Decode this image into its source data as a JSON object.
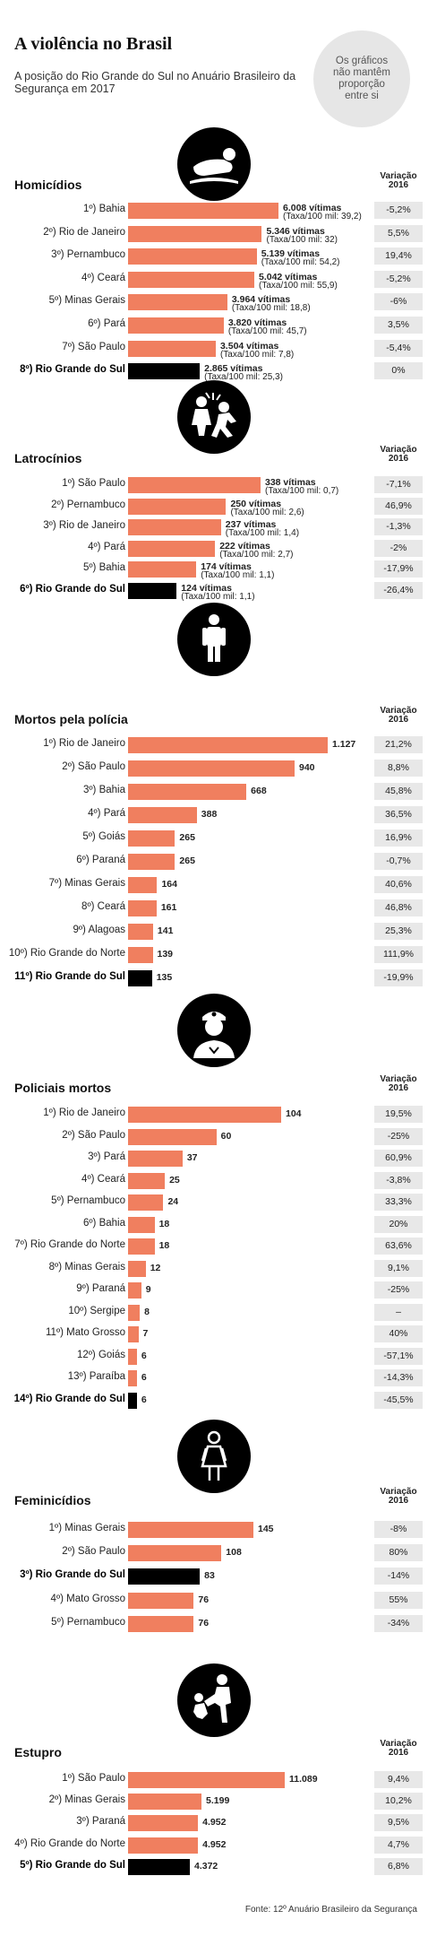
{
  "title": "A violência no Brasil",
  "subtitle": "A posição do Rio Grande do Sul no Anuário Brasileiro da Segurança em 2017",
  "note": "Os gráficos não mantêm proporção entre si",
  "source": "Fonte: 12º Anuário Brasileiro da Segurança",
  "variation_header": [
    "Variação",
    "2016"
  ],
  "colors": {
    "bar": "#f07f5f",
    "highlight": "#000000",
    "variation_box": "#e8e8e8",
    "icon_circle": "#000000"
  },
  "chart_data": [
    {
      "type": "bar",
      "title": "Homicídios",
      "icon": "corpse-icon",
      "categories": [
        "1º) Bahia",
        "2º) Rio de Janeiro",
        "3º) Pernambuco",
        "4º) Ceará",
        "5º) Minas Gerais",
        "6º) Pará",
        "7º) São Paulo",
        "8º) Rio Grande do Sul"
      ],
      "values": [
        6008,
        5346,
        5139,
        5042,
        3964,
        3820,
        3504,
        2865
      ],
      "value_labels": [
        "6.008 vítimas",
        "5.346 vítimas",
        "5.139 vítimas",
        "5.042 vítimas",
        "3.964 vítimas",
        "3.820 vítimas",
        "3.504 vítimas",
        "2.865 vítimas"
      ],
      "rate_labels": [
        "(Taxa/100 mil: 39,2)",
        "(Taxa/100 mil: 32)",
        "(Taxa/100 mil: 54,2)",
        "(Taxa/100 mil: 55,9)",
        "(Taxa/100 mil: 18,8)",
        "(Taxa/100 mil: 45,7)",
        "(Taxa/100 mil: 7,8)",
        "(Taxa/100 mil: 25,3)"
      ],
      "variation": [
        "-5,2%",
        "5,5%",
        "19,4%",
        "-5,2%",
        "-6%",
        "3,5%",
        "-5,4%",
        "0%"
      ],
      "highlight_index": 7
    },
    {
      "type": "bar",
      "title": "Latrocínios",
      "icon": "robbery-icon",
      "categories": [
        "1º) São Paulo",
        "2º) Pernambuco",
        "3º) Rio de Janeiro",
        "4º) Pará",
        "5º) Bahia",
        "6º) Rio Grande do Sul"
      ],
      "values": [
        338,
        250,
        237,
        222,
        174,
        124
      ],
      "value_labels": [
        "338 vítimas",
        "250 vítimas",
        "237 vítimas",
        "222 vítimas",
        "174 vítimas",
        "124 vítimas"
      ],
      "rate_labels": [
        "(Taxa/100 mil: 0,7)",
        "(Taxa/100 mil: 2,6)",
        "(Taxa/100 mil: 1,4)",
        "(Taxa/100 mil: 2,7)",
        "(Taxa/100 mil: 1,1)",
        "(Taxa/100 mil: 1,1)"
      ],
      "variation": [
        "-7,1%",
        "46,9%",
        "-1,3%",
        "-2%",
        "-17,9%",
        "-26,4%"
      ],
      "highlight_index": 5
    },
    {
      "type": "bar",
      "title": "Mortos pela polícia",
      "icon": "person-icon",
      "categories": [
        "1º) Rio de Janeiro",
        "2º) São Paulo",
        "3º) Bahia",
        "4º) Pará",
        "5º) Goiás",
        "6º) Paraná",
        "7º) Minas Gerais",
        "8º) Ceará",
        "9º) Alagoas",
        "10º) Rio Grande do Norte",
        "11º) Rio Grande do Sul"
      ],
      "values": [
        1127,
        940,
        668,
        388,
        265,
        265,
        164,
        161,
        141,
        139,
        135
      ],
      "value_labels": [
        "1.127",
        "940",
        "668",
        "388",
        "265",
        "265",
        "164",
        "161",
        "141",
        "139",
        "135"
      ],
      "variation": [
        "21,2%",
        "8,8%",
        "45,8%",
        "36,5%",
        "16,9%",
        "-0,7%",
        "40,6%",
        "46,8%",
        "25,3%",
        "111,9%",
        "-19,9%"
      ],
      "highlight_index": 10
    },
    {
      "type": "bar",
      "title": "Policiais mortos",
      "icon": "police-officer-icon",
      "categories": [
        "1º) Rio de Janeiro",
        "2º) São Paulo",
        "3º) Pará",
        "4º) Ceará",
        "5º) Pernambuco",
        "6º) Bahia",
        "7º) Rio Grande do Norte",
        "8º) Minas Gerais",
        "9º) Paraná",
        "10º) Sergipe",
        "11º) Mato Grosso",
        "12º) Goiás",
        "13º) Paraíba",
        "14º) Rio Grande do Sul"
      ],
      "values": [
        104,
        60,
        37,
        25,
        24,
        18,
        18,
        12,
        9,
        8,
        7,
        6,
        6,
        6
      ],
      "value_labels": [
        "104",
        "60",
        "37",
        "25",
        "24",
        "18",
        "18",
        "12",
        "9",
        "8",
        "7",
        "6",
        "6",
        "6"
      ],
      "variation": [
        "19,5%",
        "-25%",
        "60,9%",
        "-3,8%",
        "33,3%",
        "20%",
        "63,6%",
        "9,1%",
        "-25%",
        "–",
        "40%",
        "-57,1%",
        "-14,3%",
        "-45,5%"
      ],
      "highlight_index": 13
    },
    {
      "type": "bar",
      "title": "Feminicídios",
      "icon": "woman-icon",
      "categories": [
        "1º) Minas Gerais",
        "2º) São Paulo",
        "3º) Rio Grande do Sul",
        "4º) Mato Grosso",
        "5º) Pernambuco"
      ],
      "values": [
        145,
        108,
        83,
        76,
        76
      ],
      "value_labels": [
        "145",
        "108",
        "83",
        "76",
        "76"
      ],
      "variation": [
        "-8%",
        "80%",
        "-14%",
        "55%",
        "-34%"
      ],
      "highlight_index": 2
    },
    {
      "type": "bar",
      "title": "Estupro",
      "icon": "assault-icon",
      "categories": [
        "1º) São Paulo",
        "2º) Minas Gerais",
        "3º) Paraná",
        "4º) Rio Grande do Norte",
        "5º) Rio Grande do Sul"
      ],
      "values": [
        11089,
        5199,
        4952,
        4952,
        4372
      ],
      "value_labels": [
        "11.089",
        "5.199",
        "4.952",
        "4.952",
        "4.372"
      ],
      "variation": [
        "9,4%",
        "10,2%",
        "9,5%",
        "4,7%",
        "6,8%"
      ],
      "highlight_index": 4
    }
  ]
}
